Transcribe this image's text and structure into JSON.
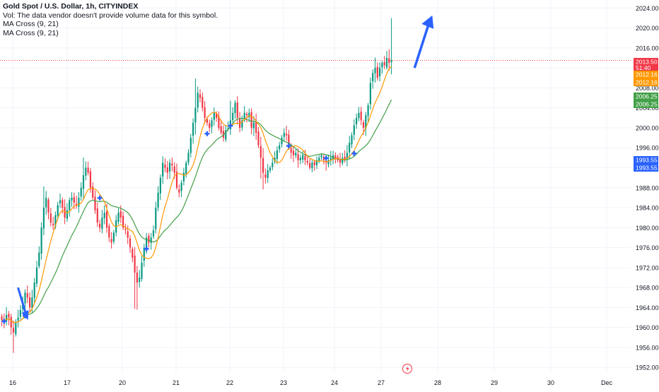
{
  "legend": {
    "title": "Gold Spot / U.S. Dollar, 1h, CITYINDEX",
    "vol_note": "Vol: The data vendor doesn't provide volume data for this symbol.",
    "indicator_1": "MA Cross (9, 21)",
    "indicator_2": "MA Cross (9, 21)"
  },
  "colors": {
    "up": "#089981",
    "down": "#f23645",
    "ma_fast": "#ff9800",
    "ma_slow": "#43a047",
    "cross_marker": "#2962ff",
    "arrow": "#2962ff",
    "grid": "#f0f3fa",
    "axis_text": "#131722",
    "price_line": "#f23645"
  },
  "chart_data": {
    "type": "candlestick",
    "symbol": "Gold Spot / U.S. Dollar",
    "interval": "1h",
    "y_axis": {
      "ticks": [
        1952.0,
        1956.0,
        1960.0,
        1964.0,
        1968.0,
        1972.0,
        1976.0,
        1980.0,
        1984.0,
        1988.0,
        1992.0,
        1996.0,
        2000.0,
        2004.0,
        2008.0,
        2012.0,
        2016.0,
        2020.0,
        2024.0
      ],
      "range": [
        1950.9,
        2025.6
      ],
      "position": "right"
    },
    "x_axis": {
      "labels": [
        "16",
        "17",
        "20",
        "21",
        "22",
        "23",
        "24",
        "27",
        "28",
        "29",
        "30",
        "Dec"
      ]
    },
    "price_labels": [
      {
        "text": "2013.50",
        "sub": "51:40",
        "value": 2013.5,
        "color": "#f23645"
      },
      {
        "text": "2012.16",
        "value": 2012.16,
        "color": "#ff9800"
      },
      {
        "text": "2012.16",
        "value": 2012.16,
        "color": "#ff9800"
      },
      {
        "text": "2006.25",
        "value": 2006.25,
        "color": "#43a047"
      },
      {
        "text": "2006.25",
        "value": 2006.25,
        "color": "#43a047"
      },
      {
        "text": "1993.55",
        "value": 1993.55,
        "color": "#2962ff"
      },
      {
        "text": "1993.55",
        "value": 1993.55,
        "color": "#2962ff"
      }
    ],
    "closes": [
      1961.5,
      1961.0,
      1962.5,
      1962.0,
      1960.0,
      1959.0,
      1961.0,
      1962.0,
      1963.5,
      1965.0,
      1967.0,
      1966.0,
      1964.0,
      1966.0,
      1969.0,
      1972.0,
      1975.0,
      1980.0,
      1984.0,
      1986.0,
      1983.0,
      1981.0,
      1980.5,
      1982.5,
      1984.5,
      1985.5,
      1984.0,
      1982.0,
      1983.5,
      1985.5,
      1986.0,
      1985.0,
      1984.5,
      1986.0,
      1988.0,
      1990.5,
      1992.0,
      1991.0,
      1988.0,
      1986.0,
      1983.5,
      1981.0,
      1980.0,
      1982.0,
      1983.0,
      1980.0,
      1978.0,
      1977.0,
      1979.0,
      1981.5,
      1983.0,
      1982.0,
      1980.0,
      1979.5,
      1978.0,
      1976.0,
      1974.0,
      1971.0,
      1969.0,
      1970.0,
      1973.0,
      1976.0,
      1978.0,
      1977.0,
      1978.0,
      1979.5,
      1984.0,
      1987.0,
      1990.0,
      1993.0,
      1992.0,
      1991.0,
      1993.0,
      1992.5,
      1991.0,
      1988.0,
      1987.0,
      1989.0,
      1991.0,
      1993.0,
      1995.0,
      1998.0,
      2001.0,
      2004.0,
      2007.0,
      2006.0,
      2004.0,
      2002.0,
      2001.0,
      2000.0,
      2001.5,
      2003.0,
      2002.0,
      2000.0,
      1999.0,
      1998.0,
      1999.5,
      2000.0,
      2001.5,
      2003.0,
      2005.0,
      2002.0,
      2000.0,
      2001.5,
      2003.0,
      2002.5,
      2003.0,
      2000.0,
      2001.0,
      1999.0,
      1996.5,
      1994.0,
      1991.0,
      1990.0,
      1991.5,
      1992.0,
      1993.0,
      1994.0,
      1995.5,
      1996.5,
      1998.0,
      1999.0,
      1998.5,
      1996.0,
      1995.0,
      1994.5,
      1995.0,
      1993.5,
      1994.0,
      1994.5,
      1993.5,
      1993.0,
      1992.0,
      1993.0,
      1992.5,
      1993.5,
      1994.0,
      1994.5,
      1993.5,
      1993.0,
      1993.5,
      1994.0,
      1994.5,
      1994.0,
      1993.5,
      1993.0,
      1994.0,
      1993.5,
      1995.0,
      1997.0,
      1998.5,
      2000.5,
      2002.0,
      2003.0,
      2001.5,
      2000.0,
      2002.5,
      2004.5,
      2009.0,
      2011.0,
      2012.0,
      2010.0,
      2012.0,
      2013.0,
      2012.5,
      2014.0,
      2013.0,
      2013.5
    ],
    "ma_periods": [
      9,
      21
    ],
    "cross_markers": [
      {
        "index": 1
      },
      {
        "index": 10
      },
      {
        "index": 42
      },
      {
        "index": 62
      },
      {
        "index": 88
      },
      {
        "index": 98
      },
      {
        "index": 123
      },
      {
        "index": 139
      },
      {
        "index": 151
      }
    ],
    "annotations": [
      {
        "type": "arrow",
        "direction": "down",
        "x_index": 10,
        "y_top": 1968.0,
        "y_bottom": 1961.5
      },
      {
        "type": "arrow",
        "direction": "up",
        "x_index": 176,
        "y_bottom": 2012.0,
        "y_top": 2022.5
      }
    ],
    "grid": true
  }
}
